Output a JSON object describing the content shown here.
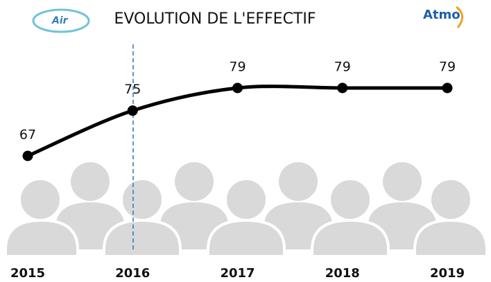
{
  "logos": [
    "Air",
    "Atmo"
  ],
  "chart_data": {
    "type": "line",
    "title": "EVOLUTION DE L'EFFECTIF",
    "categories": [
      "2015",
      "2016",
      "2017",
      "2018",
      "2019"
    ],
    "values": [
      67,
      75,
      79,
      79,
      79
    ],
    "color": "#000000"
  }
}
